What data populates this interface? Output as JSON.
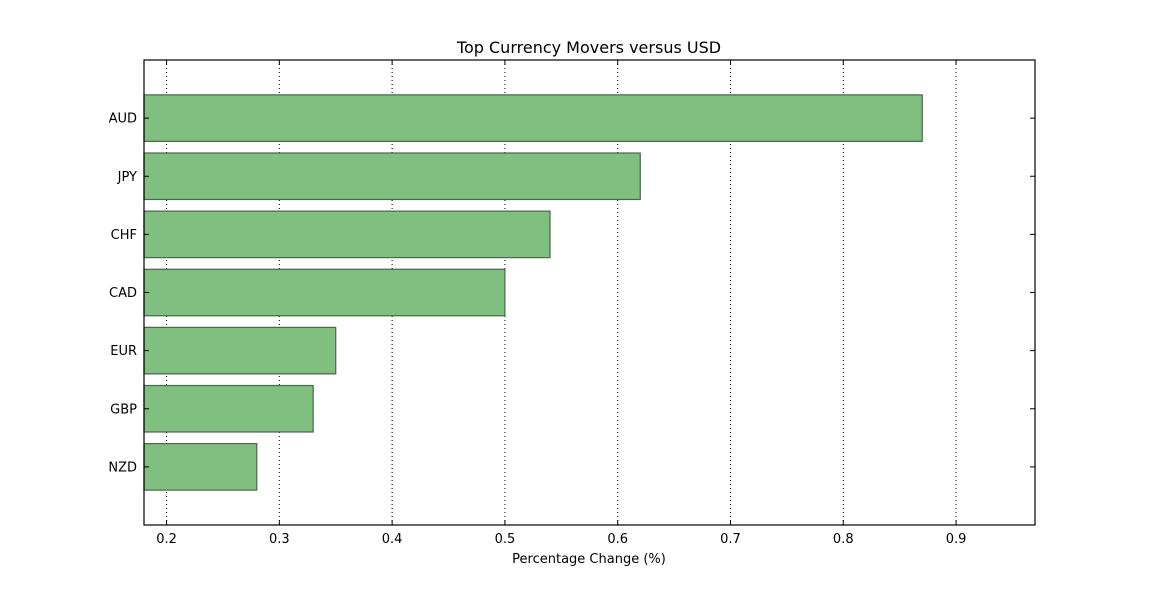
{
  "chart_data": {
    "type": "bar",
    "orientation": "horizontal",
    "title": "Top Currency Movers versus USD",
    "xlabel": "Percentage Change (%)",
    "ylabel": "",
    "categories": [
      "AUD",
      "JPY",
      "CHF",
      "CAD",
      "EUR",
      "GBP",
      "NZD"
    ],
    "values": [
      0.87,
      0.62,
      0.54,
      0.5,
      0.35,
      0.33,
      0.28
    ],
    "xlim": [
      0.18,
      0.97
    ],
    "xticks": [
      0.2,
      0.3,
      0.4,
      0.5,
      0.6,
      0.7,
      0.8,
      0.9
    ],
    "xtick_labels": [
      "0.2",
      "0.3",
      "0.4",
      "0.5",
      "0.6",
      "0.7",
      "0.8",
      "0.9"
    ],
    "grid": "x-dotted",
    "legend": "none",
    "colors": {
      "bar_fill": "#7fbf7f",
      "bar_edge": "#4a664a"
    }
  }
}
